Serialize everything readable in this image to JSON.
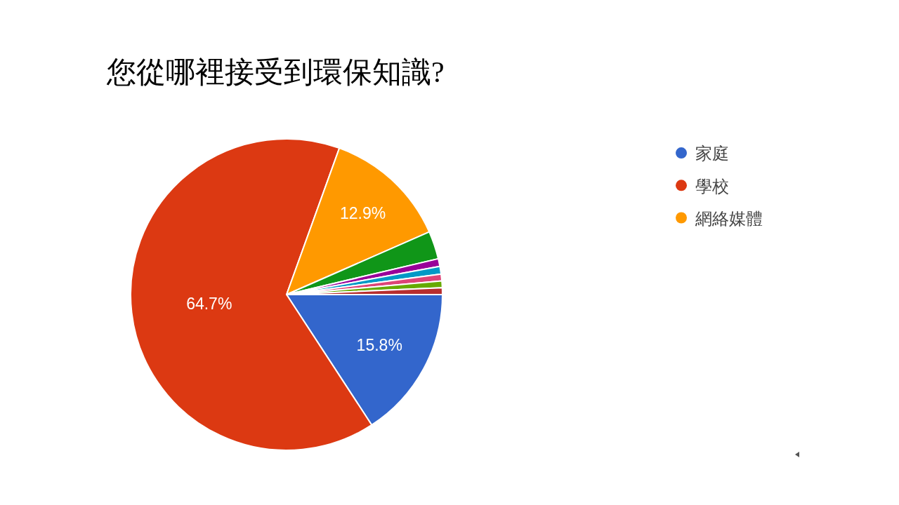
{
  "chart_data": {
    "type": "pie",
    "title": "您從哪裡接受到環保知識?",
    "categories": [
      "家庭",
      "學校",
      "網絡媒體",
      null,
      null,
      null,
      null,
      null,
      null
    ],
    "values": [
      15.8,
      64.7,
      12.9,
      2.9,
      0.8,
      0.8,
      0.7,
      0.7,
      0.7
    ],
    "colors": [
      "#3366cc",
      "#dc3912",
      "#ff9900",
      "#109618",
      "#990099",
      "#0099c6",
      "#dd4477",
      "#66aa00",
      "#b82e2e"
    ],
    "value_labels": [
      "15.8%",
      "64.7%",
      "12.9%",
      null,
      null,
      null,
      null,
      null,
      null
    ],
    "legend": "top right"
  }
}
